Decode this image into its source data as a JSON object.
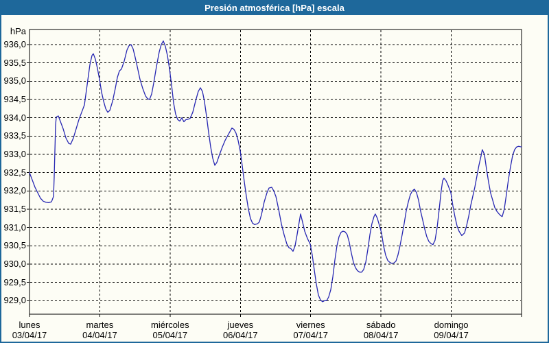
{
  "window": {
    "title": "Presión atmosférica [hPa] escala"
  },
  "colors": {
    "titlebar": "#1E689B",
    "window_border": "#1E689B",
    "window_bg": "#FDFDF5",
    "plot_border": "#000000",
    "grid": "#000000",
    "text": "#000000",
    "title_text": "#FFFFFF",
    "line": "#2626B2"
  },
  "chart_data": {
    "type": "line",
    "title": "Presión atmosférica [hPa] escala",
    "ylabel": "hPa",
    "xlabel": "",
    "ylim": [
      929.0,
      936.0
    ],
    "y_tick_step": 0.5,
    "grid": "dashed",
    "legend": "none",
    "y_ticks": [
      "936,0",
      "935,5",
      "935,0",
      "934,5",
      "934,0",
      "933,5",
      "933,0",
      "932,5",
      "932,0",
      "931,5",
      "931,0",
      "930,5",
      "930,0",
      "929,5",
      "929,0"
    ],
    "x_ticks": [
      {
        "day": "lunes",
        "date": "03/04/17"
      },
      {
        "day": "martes",
        "date": "04/04/17"
      },
      {
        "day": "miércoles",
        "date": "05/04/17"
      },
      {
        "day": "jueves",
        "date": "06/04/17"
      },
      {
        "day": "viernes",
        "date": "07/04/17"
      },
      {
        "day": "sábado",
        "date": "08/04/17"
      },
      {
        "day": "domingo",
        "date": "09/04/17"
      }
    ],
    "x_range_days": [
      0,
      7
    ],
    "series": [
      {
        "name": "Presión atmosférica [hPa]",
        "x_unit": "days",
        "points": [
          [
            0,
            932.5
          ],
          [
            0.039,
            932.3
          ],
          [
            0.078,
            932.1
          ],
          [
            0.117,
            931.95
          ],
          [
            0.156,
            931.8
          ],
          [
            0.195,
            931.72
          ],
          [
            0.234,
            931.69
          ],
          [
            0.273,
            931.68
          ],
          [
            0.312,
            931.7
          ],
          [
            0.342,
            931.85
          ],
          [
            0.351,
            932.4
          ],
          [
            0.361,
            933.1
          ],
          [
            0.371,
            933.8
          ],
          [
            0.381,
            934.02
          ],
          [
            0.41,
            934.05
          ],
          [
            0.439,
            933.9
          ],
          [
            0.478,
            933.7
          ],
          [
            0.517,
            933.45
          ],
          [
            0.557,
            933.3
          ],
          [
            0.586,
            933.28
          ],
          [
            0.625,
            933.45
          ],
          [
            0.664,
            933.7
          ],
          [
            0.703,
            933.95
          ],
          [
            0.742,
            934.15
          ],
          [
            0.781,
            934.35
          ],
          [
            0.82,
            934.9
          ],
          [
            0.859,
            935.45
          ],
          [
            0.888,
            935.7
          ],
          [
            0.908,
            935.75
          ],
          [
            0.937,
            935.6
          ],
          [
            0.967,
            935.35
          ],
          [
            0.996,
            935.05
          ],
          [
            1.025,
            934.7
          ],
          [
            1.054,
            934.45
          ],
          [
            1.084,
            934.25
          ],
          [
            1.113,
            934.15
          ],
          [
            1.142,
            934.2
          ],
          [
            1.181,
            934.45
          ],
          [
            1.22,
            934.8
          ],
          [
            1.25,
            935.1
          ],
          [
            1.279,
            935.28
          ],
          [
            1.308,
            935.33
          ],
          [
            1.347,
            935.55
          ],
          [
            1.386,
            935.85
          ],
          [
            1.416,
            935.97
          ],
          [
            1.445,
            936.0
          ],
          [
            1.474,
            935.88
          ],
          [
            1.503,
            935.65
          ],
          [
            1.533,
            935.4
          ],
          [
            1.572,
            935.05
          ],
          [
            1.611,
            934.8
          ],
          [
            1.65,
            934.6
          ],
          [
            1.679,
            934.52
          ],
          [
            1.708,
            934.5
          ],
          [
            1.738,
            934.65
          ],
          [
            1.767,
            934.95
          ],
          [
            1.806,
            935.4
          ],
          [
            1.845,
            935.8
          ],
          [
            1.874,
            936.0
          ],
          [
            1.904,
            936.1
          ],
          [
            1.933,
            935.95
          ],
          [
            1.962,
            935.7
          ],
          [
            1.991,
            935.35
          ],
          [
            2.021,
            934.9
          ],
          [
            2.05,
            934.4
          ],
          [
            2.079,
            934.1
          ],
          [
            2.109,
            933.95
          ],
          [
            2.138,
            933.91
          ],
          [
            2.167,
            934.0
          ],
          [
            2.196,
            933.89
          ],
          [
            2.226,
            933.95
          ],
          [
            2.255,
            933.96
          ],
          [
            2.284,
            933.98
          ],
          [
            2.323,
            934.15
          ],
          [
            2.362,
            934.45
          ],
          [
            2.401,
            934.72
          ],
          [
            2.431,
            934.82
          ],
          [
            2.46,
            934.72
          ],
          [
            2.489,
            934.45
          ],
          [
            2.518,
            934.05
          ],
          [
            2.548,
            933.6
          ],
          [
            2.577,
            933.2
          ],
          [
            2.606,
            932.9
          ],
          [
            2.636,
            932.7
          ],
          [
            2.665,
            932.78
          ],
          [
            2.704,
            933.0
          ],
          [
            2.743,
            933.2
          ],
          [
            2.782,
            933.38
          ],
          [
            2.821,
            933.52
          ],
          [
            2.851,
            933.62
          ],
          [
            2.88,
            933.72
          ],
          [
            2.909,
            933.68
          ],
          [
            2.938,
            933.58
          ],
          [
            2.968,
            933.38
          ],
          [
            2.997,
            933.1
          ],
          [
            3.026,
            932.7
          ],
          [
            3.056,
            932.25
          ],
          [
            3.085,
            931.85
          ],
          [
            3.114,
            931.5
          ],
          [
            3.143,
            931.25
          ],
          [
            3.173,
            931.12
          ],
          [
            3.202,
            931.08
          ],
          [
            3.241,
            931.1
          ],
          [
            3.27,
            931.15
          ],
          [
            3.3,
            931.35
          ],
          [
            3.339,
            931.7
          ],
          [
            3.378,
            931.95
          ],
          [
            3.407,
            932.08
          ],
          [
            3.446,
            932.1
          ],
          [
            3.475,
            932.0
          ],
          [
            3.505,
            931.85
          ],
          [
            3.544,
            931.5
          ],
          [
            3.583,
            931.1
          ],
          [
            3.622,
            930.8
          ],
          [
            3.661,
            930.55
          ],
          [
            3.69,
            930.45
          ],
          [
            3.72,
            930.42
          ],
          [
            3.749,
            930.35
          ],
          [
            3.778,
            930.5
          ],
          [
            3.807,
            930.8
          ],
          [
            3.837,
            931.15
          ],
          [
            3.856,
            931.37
          ],
          [
            3.885,
            931.15
          ],
          [
            3.915,
            930.9
          ],
          [
            3.954,
            930.7
          ],
          [
            3.993,
            930.55
          ],
          [
            4.022,
            930.25
          ],
          [
            4.051,
            929.85
          ],
          [
            4.081,
            929.45
          ],
          [
            4.11,
            929.15
          ],
          [
            4.139,
            929.02
          ],
          [
            4.169,
            928.97
          ],
          [
            4.198,
            929.0
          ],
          [
            4.227,
            929.0
          ],
          [
            4.256,
            929.1
          ],
          [
            4.286,
            929.3
          ],
          [
            4.315,
            929.65
          ],
          [
            4.344,
            930.1
          ],
          [
            4.374,
            930.5
          ],
          [
            4.403,
            930.75
          ],
          [
            4.432,
            930.87
          ],
          [
            4.461,
            930.9
          ],
          [
            4.491,
            930.88
          ],
          [
            4.52,
            930.8
          ],
          [
            4.549,
            930.6
          ],
          [
            4.579,
            930.3
          ],
          [
            4.608,
            930.05
          ],
          [
            4.637,
            929.9
          ],
          [
            4.666,
            929.82
          ],
          [
            4.696,
            929.78
          ],
          [
            4.725,
            929.78
          ],
          [
            4.754,
            929.85
          ],
          [
            4.784,
            930.05
          ],
          [
            4.813,
            930.4
          ],
          [
            4.842,
            930.8
          ],
          [
            4.871,
            931.1
          ],
          [
            4.901,
            931.3
          ],
          [
            4.92,
            931.37
          ],
          [
            4.949,
            931.25
          ],
          [
            4.979,
            931.05
          ],
          [
            5.008,
            930.85
          ],
          [
            5.037,
            930.5
          ],
          [
            5.066,
            930.25
          ],
          [
            5.096,
            930.1
          ],
          [
            5.125,
            930.05
          ],
          [
            5.154,
            930.02
          ],
          [
            5.184,
            930.03
          ],
          [
            5.213,
            930.08
          ],
          [
            5.242,
            930.25
          ],
          [
            5.271,
            930.5
          ],
          [
            5.301,
            930.8
          ],
          [
            5.33,
            931.1
          ],
          [
            5.359,
            931.45
          ],
          [
            5.389,
            931.7
          ],
          [
            5.418,
            931.9
          ],
          [
            5.447,
            932.0
          ],
          [
            5.476,
            932.05
          ],
          [
            5.506,
            931.95
          ],
          [
            5.535,
            931.75
          ],
          [
            5.564,
            931.45
          ],
          [
            5.594,
            931.2
          ],
          [
            5.623,
            930.95
          ],
          [
            5.652,
            930.75
          ],
          [
            5.681,
            930.62
          ],
          [
            5.711,
            930.56
          ],
          [
            5.74,
            930.53
          ],
          [
            5.769,
            930.65
          ],
          [
            5.799,
            931.0
          ],
          [
            5.828,
            931.5
          ],
          [
            5.857,
            932.0
          ],
          [
            5.877,
            932.28
          ],
          [
            5.896,
            932.35
          ],
          [
            5.925,
            932.28
          ],
          [
            5.955,
            932.15
          ],
          [
            5.994,
            931.95
          ],
          [
            6.023,
            931.6
          ],
          [
            6.052,
            931.3
          ],
          [
            6.081,
            931.05
          ],
          [
            6.111,
            930.9
          ],
          [
            6.15,
            930.78
          ],
          [
            6.189,
            930.85
          ],
          [
            6.218,
            931.05
          ],
          [
            6.247,
            931.3
          ],
          [
            6.277,
            931.6
          ],
          [
            6.306,
            931.85
          ],
          [
            6.335,
            932.1
          ],
          [
            6.364,
            932.4
          ],
          [
            6.394,
            932.7
          ],
          [
            6.423,
            932.95
          ],
          [
            6.442,
            933.13
          ],
          [
            6.472,
            933.0
          ],
          [
            6.501,
            932.6
          ],
          [
            6.53,
            932.25
          ],
          [
            6.559,
            931.95
          ],
          [
            6.589,
            931.75
          ],
          [
            6.618,
            931.55
          ],
          [
            6.647,
            931.45
          ],
          [
            6.676,
            931.38
          ],
          [
            6.706,
            931.32
          ],
          [
            6.725,
            931.3
          ],
          [
            6.754,
            931.5
          ],
          [
            6.784,
            931.9
          ],
          [
            6.813,
            932.3
          ],
          [
            6.842,
            932.65
          ],
          [
            6.871,
            932.95
          ],
          [
            6.901,
            933.13
          ],
          [
            6.93,
            933.2
          ],
          [
            6.959,
            933.22
          ],
          [
            7.0,
            933.2
          ]
        ]
      }
    ]
  }
}
